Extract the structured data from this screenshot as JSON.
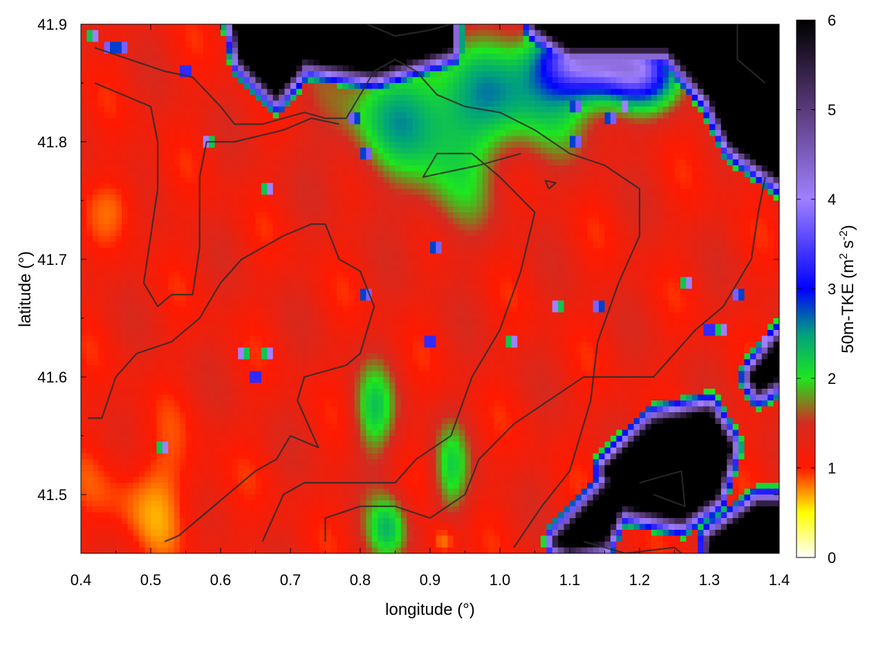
{
  "chart_data": {
    "type": "heatmap",
    "xlabel": "longitude (°)",
    "ylabel": "latitude (°)",
    "colorbar_label": "50m-TKE (m² s⁻²)",
    "colorbar_label_parts": {
      "prefix": "50m-TKE (m",
      "sup1": "2",
      "mid": " s",
      "sup2": "-2",
      "suffix": ")"
    },
    "xlim": [
      0.4,
      1.4
    ],
    "ylim": [
      41.45,
      41.9
    ],
    "clim": [
      0,
      6
    ],
    "x_ticks": [
      {
        "value": 0.4,
        "label": "0.4"
      },
      {
        "value": 0.5,
        "label": "0.5"
      },
      {
        "value": 0.6,
        "label": "0.6"
      },
      {
        "value": 0.7,
        "label": "0.7"
      },
      {
        "value": 0.8,
        "label": "0.8"
      },
      {
        "value": 0.9,
        "label": "0.9"
      },
      {
        "value": 1.0,
        "label": "1.0"
      },
      {
        "value": 1.1,
        "label": "1.1"
      },
      {
        "value": 1.2,
        "label": "1.2"
      },
      {
        "value": 1.3,
        "label": "1.3"
      },
      {
        "value": 1.4,
        "label": "1.4"
      }
    ],
    "y_ticks": [
      {
        "value": 41.5,
        "label": "41.5"
      },
      {
        "value": 41.6,
        "label": "41.6"
      },
      {
        "value": 41.7,
        "label": "41.7"
      },
      {
        "value": 41.8,
        "label": "41.8"
      },
      {
        "value": 41.9,
        "label": "41.9"
      }
    ],
    "colorbar_ticks": [
      {
        "value": 0,
        "label": "0"
      },
      {
        "value": 1,
        "label": "1"
      },
      {
        "value": 2,
        "label": "2"
      },
      {
        "value": 3,
        "label": "3"
      },
      {
        "value": 4,
        "label": "4"
      },
      {
        "value": 5,
        "label": "5"
      },
      {
        "value": 6,
        "label": "6"
      }
    ],
    "colormap": [
      {
        "value": 0.0,
        "color": "#ffffff"
      },
      {
        "value": 0.5,
        "color": "#ffff00"
      },
      {
        "value": 1.0,
        "color": "#ff1a00"
      },
      {
        "value": 1.5,
        "color": "#d42a20"
      },
      {
        "value": 2.0,
        "color": "#1ee61e"
      },
      {
        "value": 2.5,
        "color": "#00a080"
      },
      {
        "value": 3.0,
        "color": "#0000ff"
      },
      {
        "value": 4.0,
        "color": "#a080ff"
      },
      {
        "value": 5.0,
        "color": "#5a3a7a"
      },
      {
        "value": 6.0,
        "color": "#000000"
      }
    ],
    "field": {
      "background_value": 1.2,
      "features": [
        {
          "lon": 0.86,
          "lat": 41.82,
          "amp": 1.0,
          "rx": 0.1,
          "ry": 0.05
        },
        {
          "lon": 1.02,
          "lat": 41.84,
          "amp": 1.1,
          "rx": 0.12,
          "ry": 0.05
        },
        {
          "lon": 1.12,
          "lat": 41.87,
          "amp": 2.3,
          "rx": 0.07,
          "ry": 0.03
        },
        {
          "lon": 1.2,
          "lat": 41.86,
          "amp": 2.0,
          "rx": 0.06,
          "ry": 0.03
        },
        {
          "lon": 0.93,
          "lat": 41.76,
          "amp": 0.5,
          "rx": 0.06,
          "ry": 0.05
        },
        {
          "lon": 0.82,
          "lat": 41.57,
          "amp": 0.9,
          "rx": 0.03,
          "ry": 0.04
        },
        {
          "lon": 0.93,
          "lat": 41.52,
          "amp": 0.8,
          "rx": 0.025,
          "ry": 0.04
        },
        {
          "lon": 0.84,
          "lat": 41.47,
          "amp": 1.0,
          "rx": 0.03,
          "ry": 0.03
        },
        {
          "lon": 0.5,
          "lat": 41.5,
          "amp": -0.4,
          "rx": 0.08,
          "ry": 0.05
        },
        {
          "lon": 0.46,
          "lat": 41.75,
          "amp": -0.3,
          "rx": 0.04,
          "ry": 0.03
        },
        {
          "lon": 0.92,
          "lat": 41.46,
          "amp": -0.6,
          "rx": 0.02,
          "ry": 0.015
        }
      ],
      "saturated_regions": [
        {
          "polygon": [
            [
              0.62,
              41.9
            ],
            [
              0.93,
              41.9
            ],
            [
              0.93,
              41.88
            ],
            [
              0.82,
              41.86
            ],
            [
              0.72,
              41.87
            ],
            [
              0.68,
              41.84
            ],
            [
              0.63,
              41.87
            ]
          ],
          "value": 6
        },
        {
          "polygon": [
            [
              1.05,
              41.9
            ],
            [
              1.4,
              41.9
            ],
            [
              1.4,
              41.77
            ],
            [
              1.33,
              41.8
            ],
            [
              1.3,
              41.84
            ],
            [
              1.24,
              41.88
            ],
            [
              1.1,
              41.88
            ]
          ],
          "value": 6
        },
        {
          "polygon": [
            [
              1.15,
              41.52
            ],
            [
              1.22,
              41.56
            ],
            [
              1.3,
              41.57
            ],
            [
              1.33,
              41.54
            ],
            [
              1.31,
              41.5
            ],
            [
              1.26,
              41.48
            ],
            [
              1.18,
              41.49
            ]
          ],
          "value": 6
        },
        {
          "polygon": [
            [
              1.08,
              41.46
            ],
            [
              1.16,
              41.51
            ],
            [
              1.18,
              41.5
            ],
            [
              1.15,
              41.46
            ],
            [
              1.1,
              41.455
            ]
          ],
          "value": 6
        },
        {
          "polygon": [
            [
              1.3,
              41.46
            ],
            [
              1.37,
              41.49
            ],
            [
              1.4,
              41.49
            ],
            [
              1.4,
              41.45
            ],
            [
              1.3,
              41.45
            ]
          ],
          "value": 6
        },
        {
          "polygon": [
            [
              1.36,
              41.6
            ],
            [
              1.4,
              41.63
            ],
            [
              1.4,
              41.6
            ],
            [
              1.37,
              41.59
            ]
          ],
          "value": 6
        }
      ],
      "isolated_cells": [
        {
          "lon": 0.42,
          "lat": 41.89
        },
        {
          "lon": 0.44,
          "lat": 41.88
        },
        {
          "lon": 0.46,
          "lat": 41.88
        },
        {
          "lon": 0.55,
          "lat": 41.86
        },
        {
          "lon": 0.58,
          "lat": 41.8
        },
        {
          "lon": 0.79,
          "lat": 41.82
        },
        {
          "lon": 0.81,
          "lat": 41.79
        },
        {
          "lon": 0.67,
          "lat": 41.76
        },
        {
          "lon": 0.91,
          "lat": 41.71
        },
        {
          "lon": 0.81,
          "lat": 41.67
        },
        {
          "lon": 0.9,
          "lat": 41.63
        },
        {
          "lon": 0.63,
          "lat": 41.62
        },
        {
          "lon": 0.67,
          "lat": 41.62
        },
        {
          "lon": 0.65,
          "lat": 41.6
        },
        {
          "lon": 0.52,
          "lat": 41.54
        },
        {
          "lon": 1.08,
          "lat": 41.66
        },
        {
          "lon": 1.14,
          "lat": 41.66
        },
        {
          "lon": 1.11,
          "lat": 41.8
        },
        {
          "lon": 1.02,
          "lat": 41.63
        },
        {
          "lon": 1.27,
          "lat": 41.68
        },
        {
          "lon": 1.34,
          "lat": 41.67
        },
        {
          "lon": 1.3,
          "lat": 41.64
        },
        {
          "lon": 1.32,
          "lat": 41.64
        },
        {
          "lon": 1.38,
          "lat": 41.63
        },
        {
          "lon": 1.11,
          "lat": 41.83
        },
        {
          "lon": 1.16,
          "lat": 41.82
        },
        {
          "lon": 1.18,
          "lat": 41.83
        }
      ]
    },
    "contours": [
      [
        [
          0.42,
          41.88
        ],
        [
          0.52,
          41.86
        ],
        [
          0.56,
          41.855
        ],
        [
          0.6,
          41.83
        ],
        [
          0.62,
          41.815
        ],
        [
          0.66,
          41.815
        ],
        [
          0.72,
          41.825
        ],
        [
          0.75,
          41.82
        ],
        [
          0.78,
          41.82
        ],
        [
          0.8,
          41.84
        ],
        [
          0.82,
          41.86
        ],
        [
          0.85,
          41.87
        ],
        [
          0.88,
          41.86
        ],
        [
          0.91,
          41.84
        ],
        [
          0.95,
          41.83
        ],
        [
          1.0,
          41.825
        ],
        [
          1.05,
          41.81
        ],
        [
          1.1,
          41.79
        ],
        [
          1.15,
          41.78
        ],
        [
          1.2,
          41.76
        ],
        [
          1.2,
          41.72
        ],
        [
          1.17,
          41.68
        ],
        [
          1.14,
          41.63
        ],
        [
          1.13,
          41.58
        ],
        [
          1.1,
          41.52
        ],
        [
          1.06,
          41.49
        ],
        [
          1.02,
          41.455
        ]
      ],
      [
        [
          0.42,
          41.85
        ],
        [
          0.5,
          41.83
        ],
        [
          0.51,
          41.8
        ],
        [
          0.51,
          41.76
        ],
        [
          0.5,
          41.72
        ],
        [
          0.49,
          41.68
        ],
        [
          0.51,
          41.66
        ],
        [
          0.53,
          41.67
        ],
        [
          0.56,
          41.67
        ],
        [
          0.57,
          41.71
        ],
        [
          0.57,
          41.77
        ],
        [
          0.58,
          41.8
        ],
        [
          0.62,
          41.8
        ],
        [
          0.69,
          41.81
        ],
        [
          0.73,
          41.82
        ],
        [
          0.77,
          41.815
        ]
      ],
      [
        [
          0.41,
          41.565
        ],
        [
          0.43,
          41.565
        ],
        [
          0.45,
          41.6
        ],
        [
          0.48,
          41.62
        ],
        [
          0.53,
          41.63
        ],
        [
          0.57,
          41.65
        ],
        [
          0.6,
          41.68
        ],
        [
          0.63,
          41.7
        ],
        [
          0.66,
          41.71
        ],
        [
          0.69,
          41.72
        ],
        [
          0.73,
          41.73
        ],
        [
          0.75,
          41.73
        ],
        [
          0.77,
          41.7
        ],
        [
          0.8,
          41.69
        ],
        [
          0.82,
          41.66
        ],
        [
          0.8,
          41.62
        ],
        [
          0.78,
          41.61
        ],
        [
          0.72,
          41.6
        ],
        [
          0.71,
          41.58
        ],
        [
          0.74,
          41.54
        ],
        [
          0.7,
          41.55
        ],
        [
          0.68,
          41.53
        ],
        [
          0.65,
          41.52
        ],
        [
          0.61,
          41.5
        ],
        [
          0.57,
          41.48
        ],
        [
          0.54,
          41.465
        ],
        [
          0.52,
          41.46
        ]
      ],
      [
        [
          0.66,
          41.46
        ],
        [
          0.69,
          41.5
        ],
        [
          0.72,
          41.51
        ],
        [
          0.8,
          41.51
        ],
        [
          0.85,
          41.51
        ],
        [
          0.88,
          41.53
        ],
        [
          0.93,
          41.55
        ],
        [
          0.96,
          41.6
        ],
        [
          1.0,
          41.64
        ],
        [
          1.03,
          41.69
        ],
        [
          1.05,
          41.74
        ],
        [
          1.0,
          41.77
        ],
        [
          0.96,
          41.79
        ],
        [
          0.91,
          41.79
        ],
        [
          0.89,
          41.77
        ],
        [
          0.97,
          41.78
        ],
        [
          1.03,
          41.79
        ]
      ],
      [
        [
          0.75,
          41.46
        ],
        [
          0.75,
          41.48
        ],
        [
          0.8,
          41.49
        ],
        [
          0.85,
          41.49
        ],
        [
          0.9,
          41.48
        ],
        [
          0.95,
          41.5
        ],
        [
          0.97,
          41.53
        ],
        [
          1.02,
          41.56
        ],
        [
          1.07,
          41.58
        ],
        [
          1.12,
          41.6
        ],
        [
          1.17,
          41.6
        ],
        [
          1.22,
          41.6
        ],
        [
          1.25,
          41.62
        ],
        [
          1.28,
          41.64
        ],
        [
          1.32,
          41.66
        ],
        [
          1.36,
          41.7
        ],
        [
          1.37,
          41.74
        ],
        [
          1.38,
          41.77
        ]
      ],
      [
        [
          1.07,
          41.76
        ],
        [
          1.08,
          41.765
        ],
        [
          1.065,
          41.767
        ],
        [
          1.07,
          41.76
        ]
      ],
      [
        [
          1.2,
          41.51
        ],
        [
          1.26,
          41.52
        ],
        [
          1.265,
          41.49
        ],
        [
          1.22,
          41.5
        ]
      ],
      [
        [
          1.12,
          41.46
        ],
        [
          1.18,
          41.45
        ],
        [
          1.25,
          41.455
        ],
        [
          1.27,
          41.445
        ]
      ],
      [
        [
          1.34,
          41.9
        ],
        [
          1.34,
          41.87
        ],
        [
          1.38,
          41.85
        ]
      ],
      [
        [
          0.81,
          41.9
        ],
        [
          0.85,
          41.89
        ],
        [
          0.9,
          41.895
        ],
        [
          0.93,
          41.9
        ]
      ]
    ]
  }
}
